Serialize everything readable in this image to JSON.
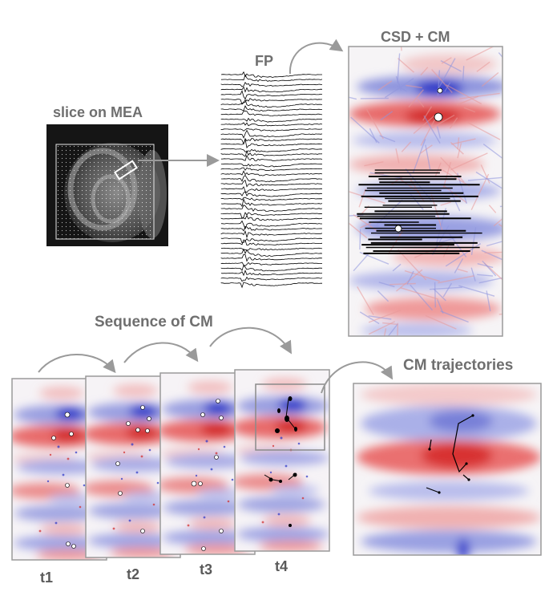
{
  "labels": {
    "slice": "slice on MEA",
    "fp": "FP",
    "csd": "CSD + CM",
    "sequence": "Sequence of CM",
    "trajectories": "CM trajectories"
  },
  "time_labels": [
    "t1",
    "t2",
    "t3",
    "t4"
  ],
  "colors": {
    "positive": "#e03030",
    "negative": "#2b36c8",
    "frame": "#9a9a9a",
    "label": "#6f6f6f",
    "arrow": "#9a9a9a",
    "trace": "#000000"
  }
}
